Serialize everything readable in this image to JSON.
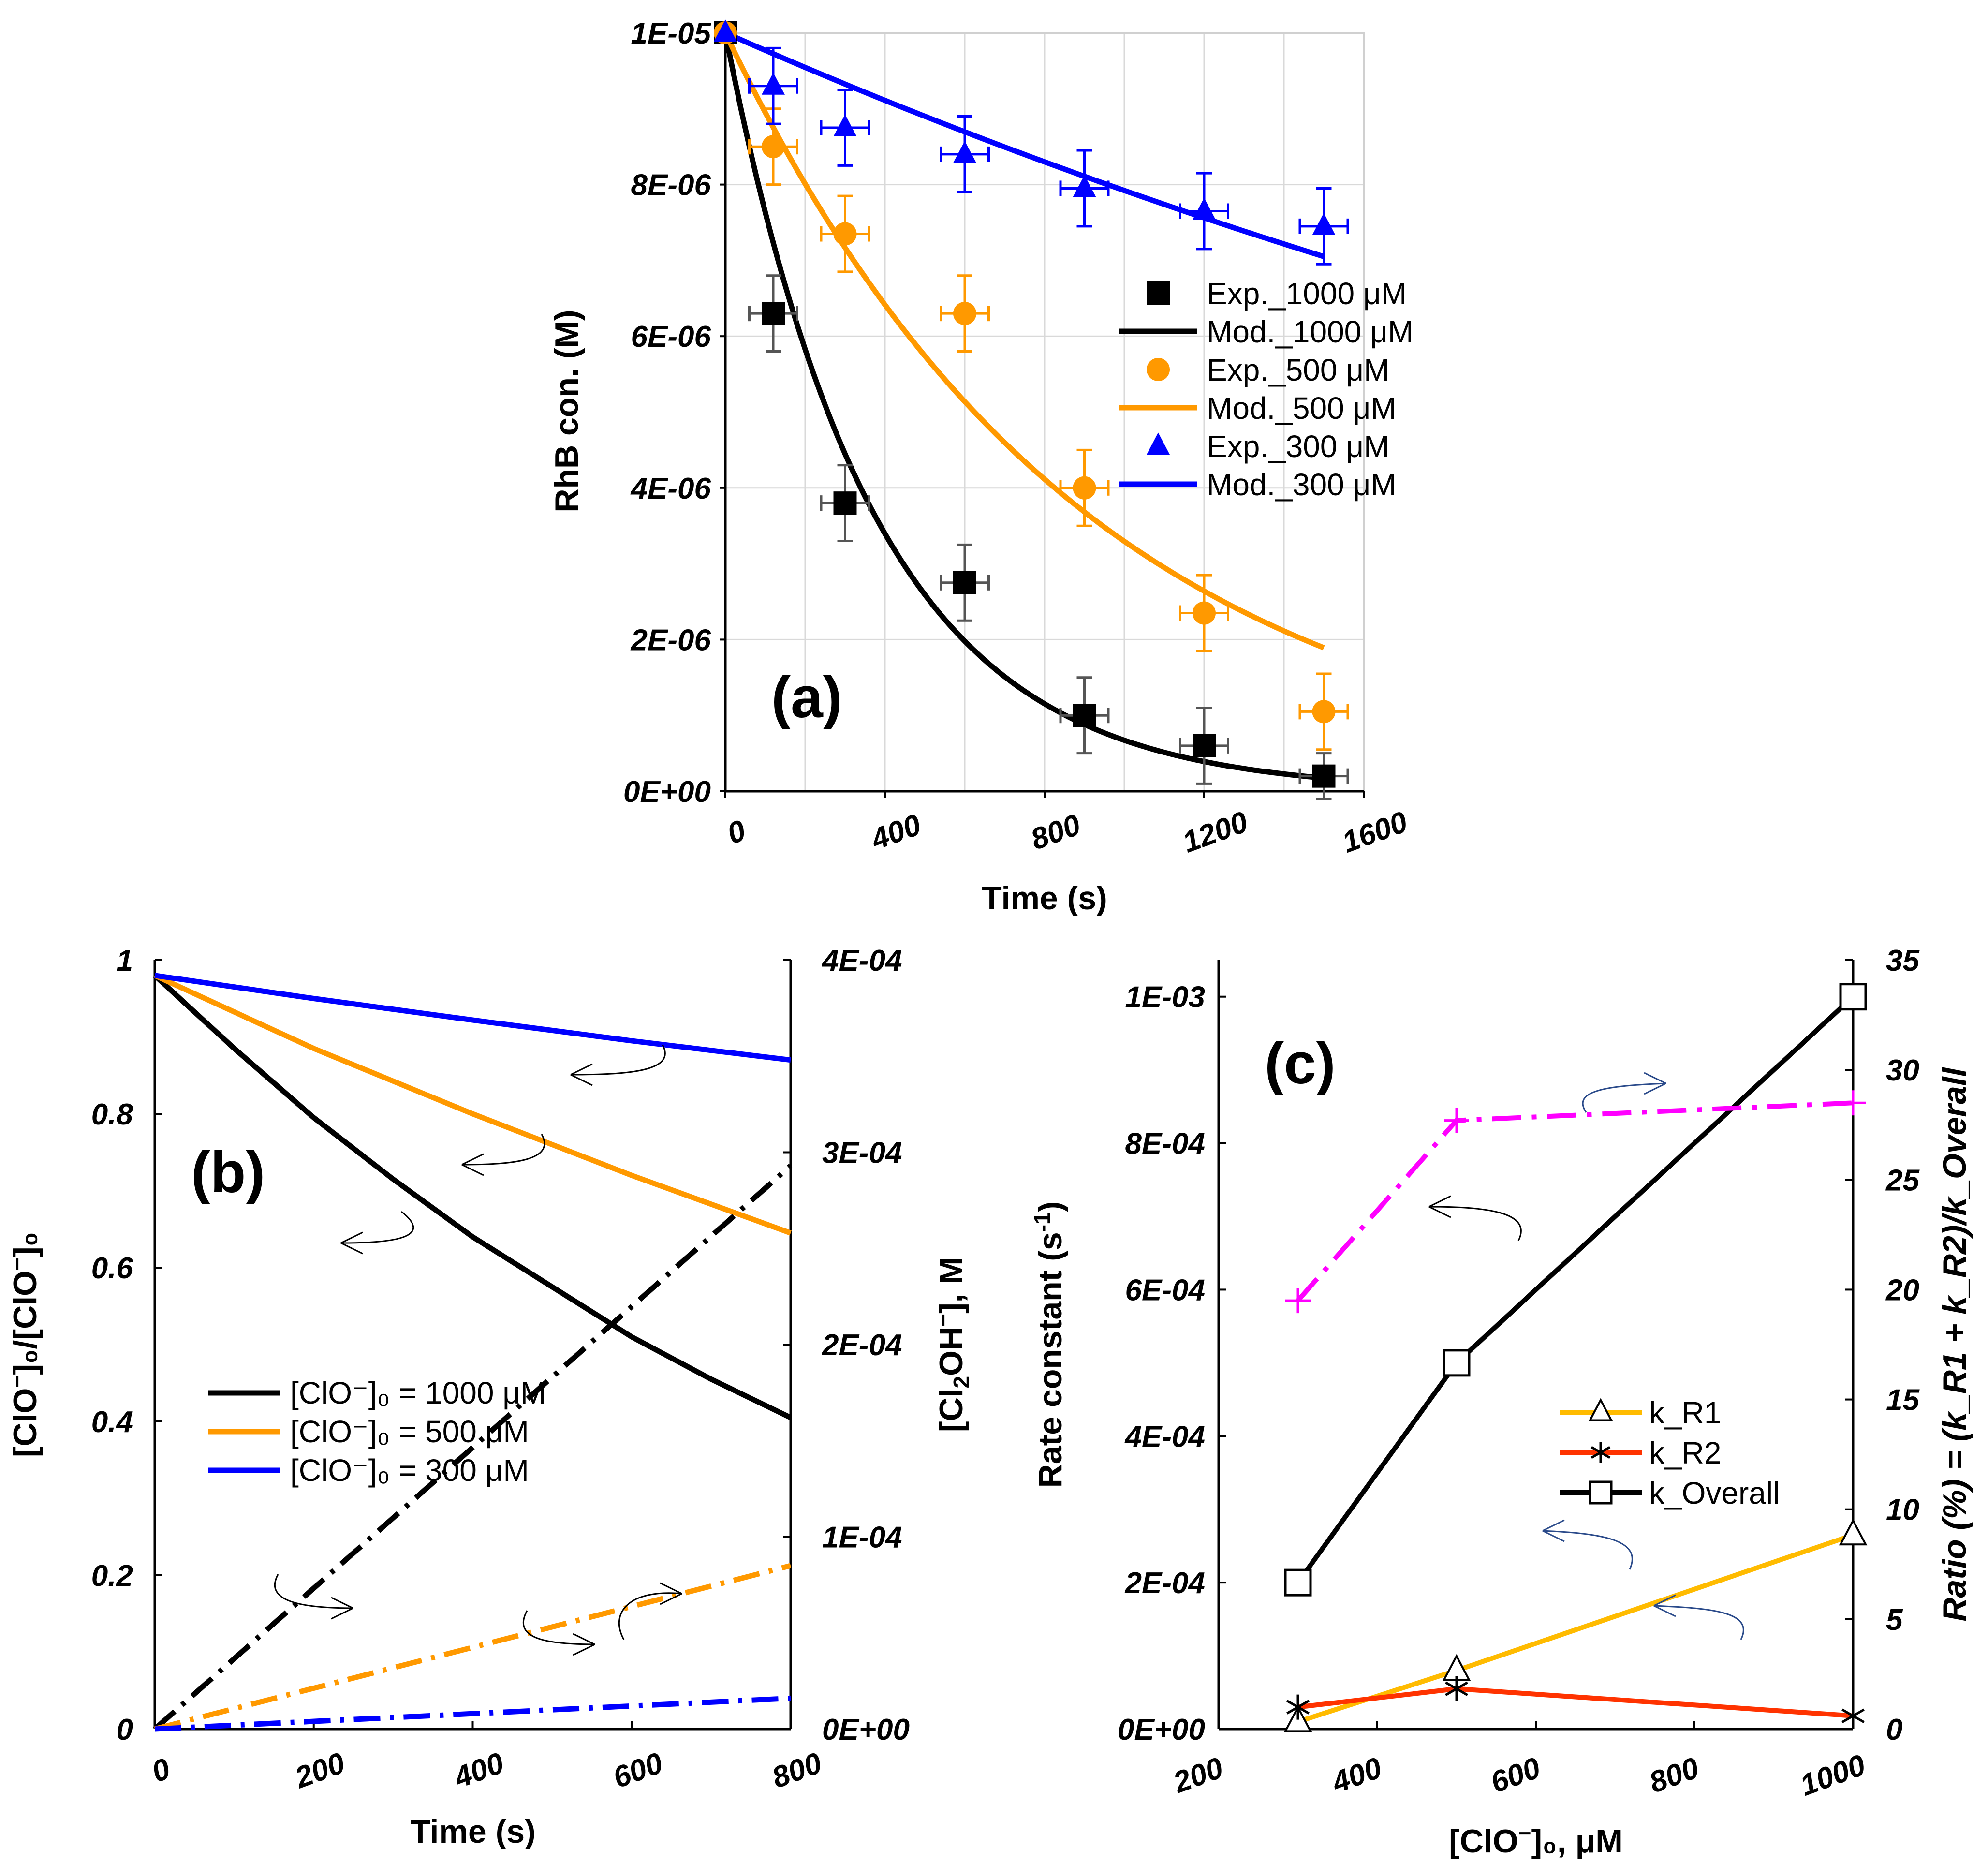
{
  "chart_data": [
    {
      "panel": "(a)",
      "type": "scatter",
      "xlabel": "Time (s)",
      "ylabel": "RhB con. (M)",
      "xlim": [
        0,
        1600
      ],
      "ylim": [
        0,
        1e-05
      ],
      "x_ticks": [
        0,
        400,
        800,
        1200,
        1600
      ],
      "x_tick_labels": [
        "0",
        "400",
        "800",
        "1200",
        "1600"
      ],
      "y_ticks": [
        0,
        2e-06,
        4e-06,
        6e-06,
        8e-06,
        1e-05
      ],
      "y_tick_labels": [
        "0E+00",
        "2E-06",
        "4E-06",
        "6E-06",
        "8E-06",
        "1E-05"
      ],
      "grid": true,
      "legend_position": "right",
      "series": [
        {
          "name": "Exp._1000 μM",
          "kind": "points",
          "marker": "square",
          "color": "#000000",
          "x": [
            0,
            120,
            300,
            600,
            900,
            1200,
            1500
          ],
          "y": [
            1e-05,
            6.3e-06,
            3.8e-06,
            2.75e-06,
            1e-06,
            6e-07,
            2e-07
          ],
          "yerr": [
            0,
            5e-07,
            5e-07,
            5e-07,
            5e-07,
            5e-07,
            3e-07
          ],
          "xerr": 60,
          "error_color": "#555555"
        },
        {
          "name": "Mod._1000 μM",
          "kind": "line",
          "color": "#000000",
          "model_k": 0.0027,
          "x_range": [
            0,
            1500
          ]
        },
        {
          "name": "Exp._500 μM",
          "kind": "points",
          "marker": "circle",
          "color": "#ff9900",
          "x": [
            0,
            120,
            300,
            600,
            900,
            1200,
            1500
          ],
          "y": [
            1e-05,
            8.5e-06,
            7.35e-06,
            6.3e-06,
            4e-06,
            2.35e-06,
            1.05e-06
          ],
          "yerr": [
            0,
            5e-07,
            5e-07,
            5e-07,
            5e-07,
            5e-07,
            5e-07
          ],
          "xerr": 60,
          "error_color": "#ff9900"
        },
        {
          "name": "Mod._500 μM",
          "kind": "line",
          "color": "#ff9900",
          "model_k": 0.00111,
          "x_range": [
            0,
            1500
          ]
        },
        {
          "name": "Exp._300 μM",
          "kind": "points",
          "marker": "triangle",
          "color": "#0000ff",
          "x": [
            0,
            120,
            300,
            600,
            900,
            1200,
            1500
          ],
          "y": [
            1e-05,
            9.3e-06,
            8.75e-06,
            8.4e-06,
            7.95e-06,
            7.65e-06,
            7.45e-06
          ],
          "yerr": [
            0,
            5e-07,
            5e-07,
            5e-07,
            5e-07,
            5e-07,
            5e-07
          ],
          "xerr": 60,
          "error_color": "#0000ff"
        },
        {
          "name": "Mod._300 μM",
          "kind": "line",
          "color": "#0000ff",
          "model_k": 0.000233,
          "x_range": [
            0,
            1500
          ]
        }
      ]
    },
    {
      "panel": "(b)",
      "type": "line",
      "xlabel": "Time (s)",
      "ylabel": "[ClO⁻]₀/[ClO⁻]₀",
      "ylabel_right": "[Cl₂OH⁻], M",
      "xlim": [
        0,
        800
      ],
      "ylim": [
        0,
        1
      ],
      "ylim_right": [
        0,
        0.0004
      ],
      "x_ticks": [
        0,
        200,
        400,
        600,
        800
      ],
      "x_tick_labels": [
        "0",
        "200",
        "400",
        "600",
        "800"
      ],
      "y_ticks": [
        0,
        0.2,
        0.4,
        0.6,
        0.8,
        1
      ],
      "y_tick_labels": [
        "0",
        "0.2",
        "0.4",
        "0.6",
        "0.8",
        "1"
      ],
      "y_right_ticks": [
        0,
        0.0001,
        0.0002,
        0.0003,
        0.0004
      ],
      "y_right_tick_labels": [
        "0E+00",
        "1E-04",
        "2E-04",
        "3E-04",
        "4E-04"
      ],
      "legend_position": "lower-left",
      "series": [
        {
          "name": "[ClO⁻]₀ = 1000 μM",
          "axis": "left",
          "color": "#000000",
          "x": [
            0,
            100,
            200,
            300,
            400,
            500,
            600,
            700,
            800
          ],
          "y": [
            0.98,
            0.885,
            0.795,
            0.715,
            0.64,
            0.575,
            0.51,
            0.455,
            0.405
          ]
        },
        {
          "name": "[ClO⁻]₀ = 500 μM",
          "axis": "left",
          "color": "#ff9900",
          "x": [
            0,
            200,
            400,
            600,
            800
          ],
          "y": [
            0.98,
            0.885,
            0.8,
            0.72,
            0.645
          ]
        },
        {
          "name": "[ClO⁻]₀ = 300 μM",
          "axis": "left",
          "color": "#0000ff",
          "x": [
            0,
            200,
            400,
            600,
            800
          ],
          "y": [
            0.98,
            0.95,
            0.922,
            0.895,
            0.87
          ]
        },
        {
          "name": "[Cl₂OH⁻] 1000 μM",
          "axis": "right",
          "dash": true,
          "color": "#000000",
          "x": [
            0,
            800
          ],
          "y": [
            0,
            0.000293
          ]
        },
        {
          "name": "[Cl₂OH⁻] 500 μM",
          "axis": "right",
          "dash": true,
          "color": "#ff9900",
          "x": [
            0,
            800
          ],
          "y": [
            0,
            8.5e-05
          ]
        },
        {
          "name": "[Cl₂OH⁻] 300 μM",
          "axis": "right",
          "dash": true,
          "color": "#0000ff",
          "x": [
            0,
            800
          ],
          "y": [
            0,
            1.6e-05
          ]
        }
      ]
    },
    {
      "panel": "(c)",
      "type": "line",
      "xlabel": "[ClO⁻]₀, μM",
      "ylabel": "Rate constant (s⁻¹)",
      "ylabel_right": "Ratio (%) = (k_R1 + k_R2)/k_Overall",
      "xlim": [
        200,
        1000
      ],
      "ylim": [
        0,
        0.00105
      ],
      "ylim_right": [
        0,
        35
      ],
      "x_ticks": [
        200,
        400,
        600,
        800,
        1000
      ],
      "x_tick_labels": [
        "200",
        "400",
        "600",
        "800",
        "1000"
      ],
      "y_ticks": [
        0,
        0.0002,
        0.0004,
        0.0006,
        0.0008,
        0.001
      ],
      "y_tick_labels": [
        "0E+00",
        "2E-04",
        "4E-04",
        "6E-04",
        "8E-04",
        "1E-03"
      ],
      "y_right_ticks": [
        0,
        5,
        10,
        15,
        20,
        25,
        30,
        35
      ],
      "y_right_tick_labels": [
        "0",
        "5",
        "10",
        "15",
        "20",
        "25",
        "30",
        "35"
      ],
      "legend_position": "center-right",
      "series": [
        {
          "name": "k_R1",
          "axis": "left",
          "marker": "triangle",
          "color": "#ffbb00",
          "x": [
            300,
            500,
            1000
          ],
          "y": [
            1e-05,
            8e-05,
            0.000265
          ]
        },
        {
          "name": "k_R2",
          "axis": "left",
          "marker": "star",
          "color": "#ff3300",
          "x": [
            300,
            500,
            1000
          ],
          "y": [
            3e-05,
            5.5e-05,
            1.8e-05
          ]
        },
        {
          "name": "k_Overall",
          "axis": "left",
          "marker": "square",
          "color": "#000000",
          "x": [
            300,
            500,
            1000
          ],
          "y": [
            0.0002,
            0.0005,
            0.001
          ]
        },
        {
          "name": "Ratio",
          "axis": "right",
          "marker": "plus",
          "dash": true,
          "color": "#ff00ff",
          "x": [
            300,
            500,
            1000
          ],
          "y": [
            19.5,
            27.7,
            28.5
          ]
        }
      ]
    }
  ],
  "labels": {
    "panel_a": "(a)",
    "panel_b": "(b)",
    "panel_c": "(c)",
    "a_x": "Time (s)",
    "a_y": "RhB con. (M)",
    "b_x": "Time (s)",
    "b_y_left_main": "[ClO",
    "b_y_left_sup1": "−",
    "b_y_left_mid": "]₀/[ClO",
    "b_y_left_sup2": "−",
    "b_y_left_end": "]₀",
    "b_y_right_a": "[Cl",
    "b_y_right_sub": "2",
    "b_y_right_b": "OH",
    "b_y_right_sup": "−",
    "b_y_right_c": "], M",
    "c_x_a": "[ClO",
    "c_x_sup": "−",
    "c_x_b": "]₀, μM",
    "c_y_a": "Rate constant (s",
    "c_y_sup": "-1",
    "c_y_b": ")",
    "c_y_right": "Ratio (%) = (k_R1 + k_R2)/k_Overall",
    "b_leg_1": "[ClO⁻]₀ = 1000 μM",
    "b_leg_2": "[ClO⁻]₀ = 500 μM",
    "b_leg_3": "[ClO⁻]₀ = 300 μM"
  }
}
